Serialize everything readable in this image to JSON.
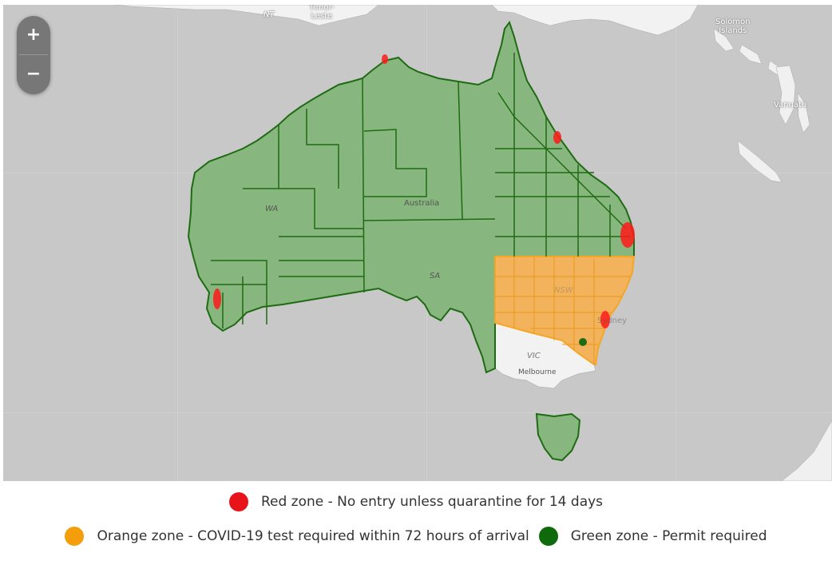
{
  "map": {
    "labels": {
      "nt": "NT",
      "timor": "Timor-\nLeste",
      "solomon": "Solomon\nIslands",
      "vanuatu": "Vanuatu",
      "wa": "WA",
      "australia": "Australia",
      "sa": "SA",
      "nsw": "NSW",
      "sydney": "Sydney",
      "vic": "VIC",
      "melbourne": "Melbourne"
    },
    "zoom": {
      "in_label": "+",
      "out_label": "−"
    },
    "zone_colors": {
      "red": "#ff1a1a",
      "orange": "#f5a623",
      "green": "#1f6b13"
    }
  },
  "legend": {
    "red": {
      "label": "Red zone - No entry unless quarantine for 14 days",
      "color": "#e8141c"
    },
    "orange": {
      "label": "Orange zone - COVID-19 test required within 72 hours of arrival",
      "color": "#f59e0b"
    },
    "green": {
      "label": "Green zone - Permit required",
      "color": "#0f6a0c"
    }
  }
}
